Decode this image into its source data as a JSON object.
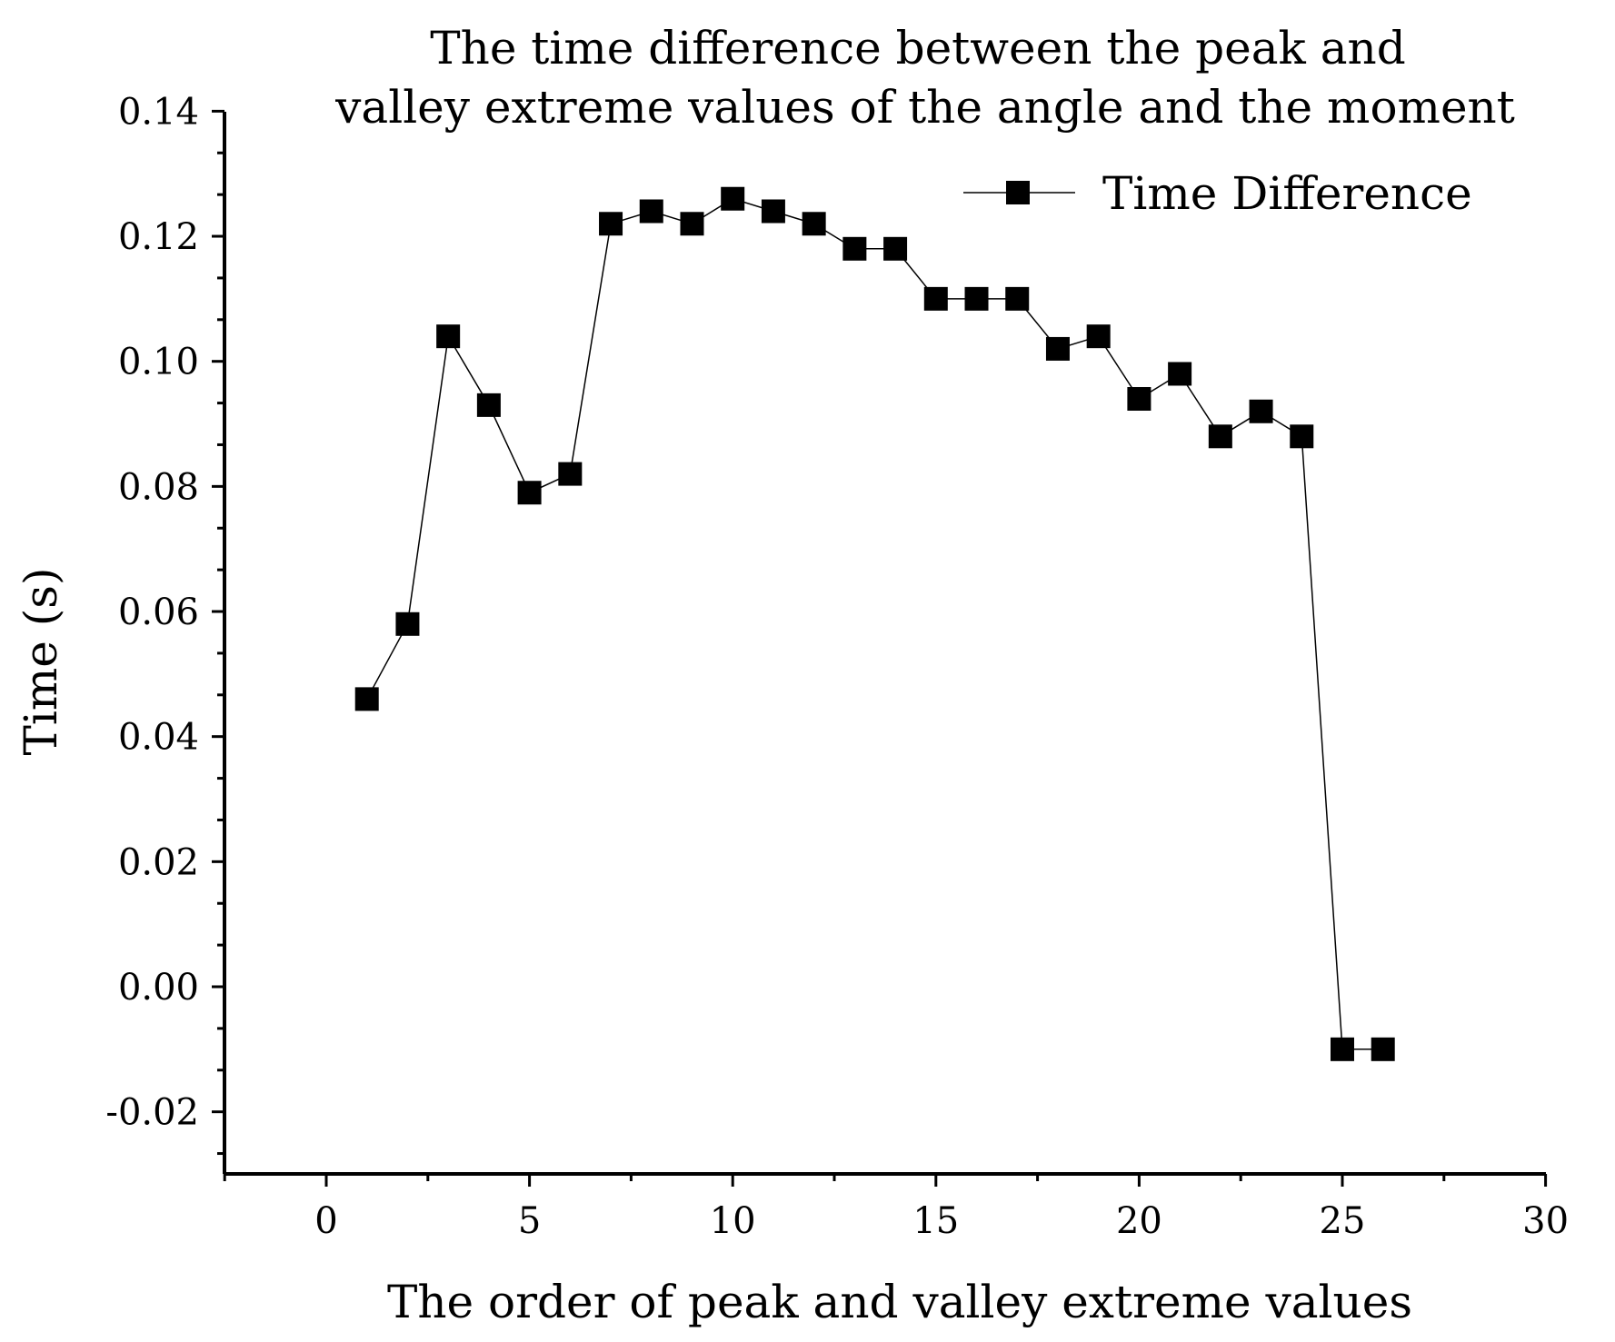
{
  "chart_data": {
    "type": "line",
    "title": "The time difference between the peak and valley extreme values of the angle and the moment",
    "title_lines": [
      "The time difference between the peak and",
      "valley extreme values of the angle and the moment"
    ],
    "xlabel": "The order of peak and valley extreme values",
    "ylabel": "Time (s)",
    "xlim": [
      -2.5,
      30
    ],
    "ylim": [
      -0.03,
      0.14
    ],
    "xticks": [
      0,
      5,
      10,
      15,
      20,
      25,
      30
    ],
    "yticks": [
      -0.02,
      0.0,
      0.02,
      0.04,
      0.06,
      0.08,
      0.1,
      0.12,
      0.14
    ],
    "xtick_labels": [
      "0",
      "5",
      "10",
      "15",
      "20",
      "25",
      "30"
    ],
    "ytick_labels": [
      "-0.02",
      "0.00",
      "0.02",
      "0.04",
      "0.06",
      "0.08",
      "0.10",
      "0.12",
      "0.14"
    ],
    "grid": false,
    "legend_position": "top-right",
    "series": [
      {
        "name": "Time Difference",
        "marker": "square",
        "color": "#000000",
        "x": [
          1,
          2,
          3,
          4,
          5,
          6,
          7,
          8,
          9,
          10,
          11,
          12,
          13,
          14,
          15,
          16,
          17,
          18,
          19,
          20,
          21,
          22,
          23,
          24,
          25,
          26
        ],
        "y": [
          0.046,
          0.058,
          0.104,
          0.093,
          0.079,
          0.082,
          0.122,
          0.124,
          0.122,
          0.126,
          0.124,
          0.122,
          0.118,
          0.118,
          0.11,
          0.11,
          0.11,
          0.102,
          0.104,
          0.094,
          0.098,
          0.088,
          0.092,
          0.088,
          -0.01,
          -0.01
        ]
      }
    ]
  }
}
